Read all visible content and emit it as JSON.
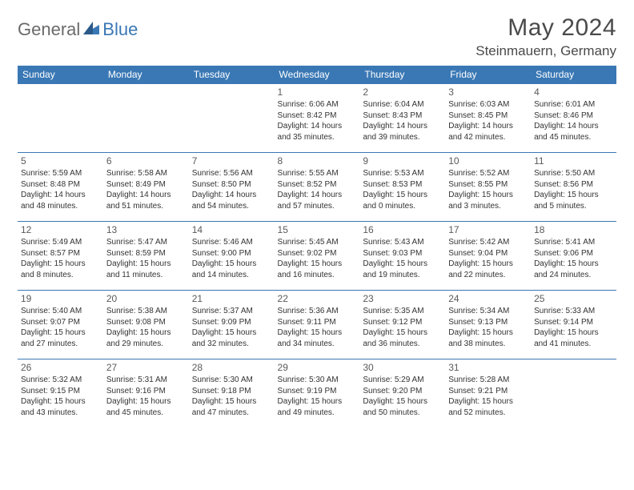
{
  "logo": {
    "general": "General",
    "blue": "Blue"
  },
  "title": "May 2024",
  "location": "Steinmauern, Germany",
  "colors": {
    "header_bg": "#3a78b5",
    "border": "#3a78b5",
    "logo_gray": "#6a6a6a",
    "logo_blue": "#3a78b5"
  },
  "weekdays": [
    "Sunday",
    "Monday",
    "Tuesday",
    "Wednesday",
    "Thursday",
    "Friday",
    "Saturday"
  ],
  "weeks": [
    [
      null,
      null,
      null,
      {
        "n": "1",
        "sr": "6:06 AM",
        "ss": "8:42 PM",
        "dl": "14 hours and 35 minutes."
      },
      {
        "n": "2",
        "sr": "6:04 AM",
        "ss": "8:43 PM",
        "dl": "14 hours and 39 minutes."
      },
      {
        "n": "3",
        "sr": "6:03 AM",
        "ss": "8:45 PM",
        "dl": "14 hours and 42 minutes."
      },
      {
        "n": "4",
        "sr": "6:01 AM",
        "ss": "8:46 PM",
        "dl": "14 hours and 45 minutes."
      }
    ],
    [
      {
        "n": "5",
        "sr": "5:59 AM",
        "ss": "8:48 PM",
        "dl": "14 hours and 48 minutes."
      },
      {
        "n": "6",
        "sr": "5:58 AM",
        "ss": "8:49 PM",
        "dl": "14 hours and 51 minutes."
      },
      {
        "n": "7",
        "sr": "5:56 AM",
        "ss": "8:50 PM",
        "dl": "14 hours and 54 minutes."
      },
      {
        "n": "8",
        "sr": "5:55 AM",
        "ss": "8:52 PM",
        "dl": "14 hours and 57 minutes."
      },
      {
        "n": "9",
        "sr": "5:53 AM",
        "ss": "8:53 PM",
        "dl": "15 hours and 0 minutes."
      },
      {
        "n": "10",
        "sr": "5:52 AM",
        "ss": "8:55 PM",
        "dl": "15 hours and 3 minutes."
      },
      {
        "n": "11",
        "sr": "5:50 AM",
        "ss": "8:56 PM",
        "dl": "15 hours and 5 minutes."
      }
    ],
    [
      {
        "n": "12",
        "sr": "5:49 AM",
        "ss": "8:57 PM",
        "dl": "15 hours and 8 minutes."
      },
      {
        "n": "13",
        "sr": "5:47 AM",
        "ss": "8:59 PM",
        "dl": "15 hours and 11 minutes."
      },
      {
        "n": "14",
        "sr": "5:46 AM",
        "ss": "9:00 PM",
        "dl": "15 hours and 14 minutes."
      },
      {
        "n": "15",
        "sr": "5:45 AM",
        "ss": "9:02 PM",
        "dl": "15 hours and 16 minutes."
      },
      {
        "n": "16",
        "sr": "5:43 AM",
        "ss": "9:03 PM",
        "dl": "15 hours and 19 minutes."
      },
      {
        "n": "17",
        "sr": "5:42 AM",
        "ss": "9:04 PM",
        "dl": "15 hours and 22 minutes."
      },
      {
        "n": "18",
        "sr": "5:41 AM",
        "ss": "9:06 PM",
        "dl": "15 hours and 24 minutes."
      }
    ],
    [
      {
        "n": "19",
        "sr": "5:40 AM",
        "ss": "9:07 PM",
        "dl": "15 hours and 27 minutes."
      },
      {
        "n": "20",
        "sr": "5:38 AM",
        "ss": "9:08 PM",
        "dl": "15 hours and 29 minutes."
      },
      {
        "n": "21",
        "sr": "5:37 AM",
        "ss": "9:09 PM",
        "dl": "15 hours and 32 minutes."
      },
      {
        "n": "22",
        "sr": "5:36 AM",
        "ss": "9:11 PM",
        "dl": "15 hours and 34 minutes."
      },
      {
        "n": "23",
        "sr": "5:35 AM",
        "ss": "9:12 PM",
        "dl": "15 hours and 36 minutes."
      },
      {
        "n": "24",
        "sr": "5:34 AM",
        "ss": "9:13 PM",
        "dl": "15 hours and 38 minutes."
      },
      {
        "n": "25",
        "sr": "5:33 AM",
        "ss": "9:14 PM",
        "dl": "15 hours and 41 minutes."
      }
    ],
    [
      {
        "n": "26",
        "sr": "5:32 AM",
        "ss": "9:15 PM",
        "dl": "15 hours and 43 minutes."
      },
      {
        "n": "27",
        "sr": "5:31 AM",
        "ss": "9:16 PM",
        "dl": "15 hours and 45 minutes."
      },
      {
        "n": "28",
        "sr": "5:30 AM",
        "ss": "9:18 PM",
        "dl": "15 hours and 47 minutes."
      },
      {
        "n": "29",
        "sr": "5:30 AM",
        "ss": "9:19 PM",
        "dl": "15 hours and 49 minutes."
      },
      {
        "n": "30",
        "sr": "5:29 AM",
        "ss": "9:20 PM",
        "dl": "15 hours and 50 minutes."
      },
      {
        "n": "31",
        "sr": "5:28 AM",
        "ss": "9:21 PM",
        "dl": "15 hours and 52 minutes."
      },
      null
    ]
  ]
}
